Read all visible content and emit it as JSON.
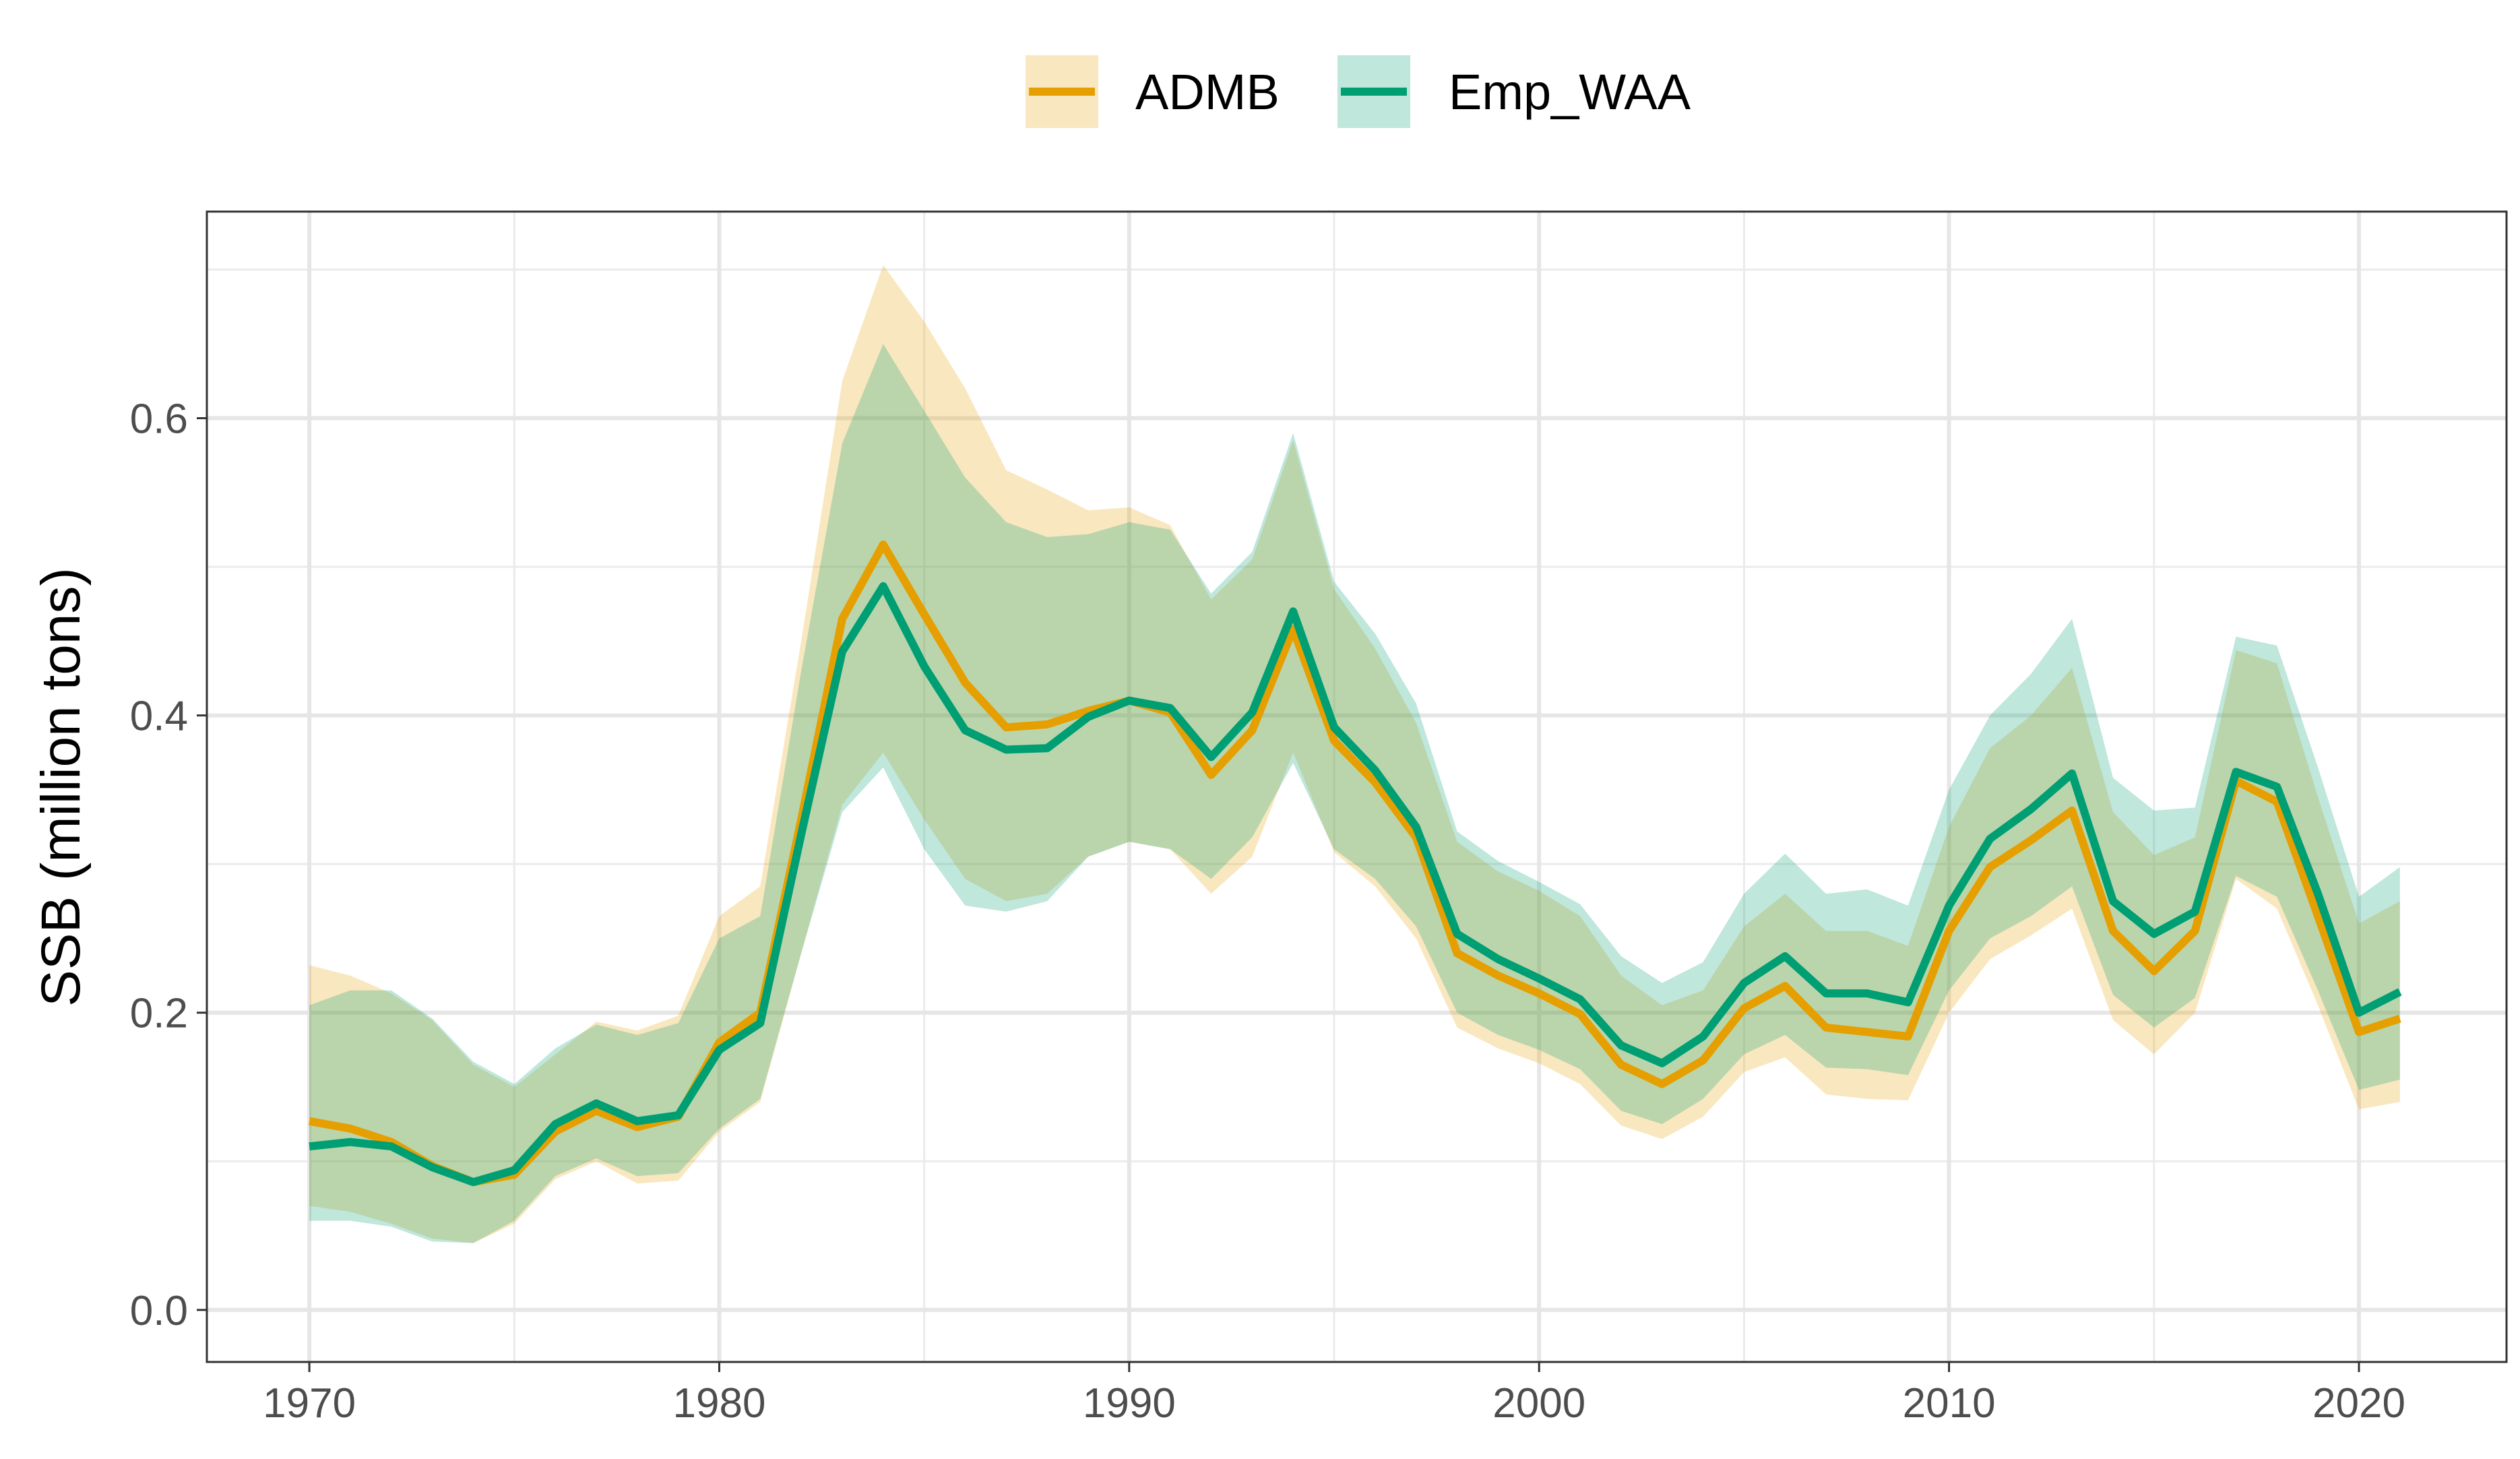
{
  "chart_data": {
    "type": "line",
    "title": "",
    "xlabel": "",
    "ylabel": "SSB (million tons)",
    "xlim": [
      1967.5,
      2023.6
    ],
    "ylim": [
      -0.035,
      0.739
    ],
    "x_ticks": [
      1970,
      1980,
      1990,
      2000,
      2010,
      2020
    ],
    "x_tick_labels": [
      "1970",
      "1980",
      "1990",
      "2000",
      "2010",
      "2020"
    ],
    "y_ticks": [
      0.0,
      0.2,
      0.4,
      0.6
    ],
    "y_tick_labels": [
      "0.0",
      "0.2",
      "0.4",
      "0.6"
    ],
    "grid": true,
    "legend_position": "top",
    "x": [
      1970,
      1971,
      1972,
      1973,
      1974,
      1975,
      1976,
      1977,
      1978,
      1979,
      1980,
      1981,
      1982,
      1983,
      1984,
      1985,
      1986,
      1987,
      1988,
      1989,
      1990,
      1991,
      1992,
      1993,
      1994,
      1995,
      1996,
      1997,
      1998,
      1999,
      2000,
      2001,
      2002,
      2003,
      2004,
      2005,
      2006,
      2007,
      2008,
      2009,
      2010,
      2011,
      2012,
      2013,
      2014,
      2015,
      2016,
      2017,
      2018,
      2019,
      2020,
      2021
    ],
    "series": [
      {
        "name": "ADMB",
        "color": "#E69F00",
        "values": [
          0.127,
          0.122,
          0.113,
          0.097,
          0.086,
          0.091,
          0.12,
          0.134,
          0.123,
          0.13,
          0.18,
          0.2,
          0.33,
          0.465,
          0.515,
          0.468,
          0.422,
          0.392,
          0.394,
          0.403,
          0.41,
          0.402,
          0.36,
          0.39,
          0.458,
          0.383,
          0.355,
          0.318,
          0.24,
          0.225,
          0.213,
          0.199,
          0.165,
          0.152,
          0.168,
          0.203,
          0.218,
          0.19,
          0.187,
          0.184,
          0.255,
          0.298,
          0.316,
          0.336,
          0.255,
          0.228,
          0.255,
          0.356,
          0.342,
          0.265,
          0.187,
          0.196
        ],
        "upper": [
          0.232,
          0.225,
          0.213,
          0.195,
          0.165,
          0.15,
          0.172,
          0.194,
          0.188,
          0.198,
          0.265,
          0.285,
          0.45,
          0.625,
          0.703,
          0.665,
          0.62,
          0.565,
          0.552,
          0.538,
          0.54,
          0.528,
          0.478,
          0.505,
          0.585,
          0.485,
          0.445,
          0.395,
          0.315,
          0.295,
          0.282,
          0.265,
          0.225,
          0.205,
          0.215,
          0.258,
          0.28,
          0.255,
          0.255,
          0.245,
          0.325,
          0.378,
          0.4,
          0.432,
          0.335,
          0.306,
          0.318,
          0.444,
          0.435,
          0.345,
          0.26,
          0.275
        ],
        "lower": [
          0.07,
          0.066,
          0.058,
          0.048,
          0.045,
          0.058,
          0.088,
          0.1,
          0.085,
          0.087,
          0.12,
          0.14,
          0.24,
          0.34,
          0.375,
          0.33,
          0.29,
          0.275,
          0.28,
          0.305,
          0.315,
          0.31,
          0.28,
          0.305,
          0.375,
          0.308,
          0.285,
          0.25,
          0.19,
          0.176,
          0.166,
          0.152,
          0.124,
          0.115,
          0.13,
          0.16,
          0.17,
          0.145,
          0.142,
          0.141,
          0.2,
          0.236,
          0.252,
          0.27,
          0.195,
          0.172,
          0.2,
          0.29,
          0.27,
          0.205,
          0.135,
          0.14
        ]
      },
      {
        "name": "Emp_WAA",
        "color": "#009E73",
        "values": [
          0.11,
          0.113,
          0.11,
          0.096,
          0.086,
          0.094,
          0.125,
          0.139,
          0.127,
          0.131,
          0.175,
          0.193,
          0.32,
          0.443,
          0.487,
          0.433,
          0.39,
          0.377,
          0.378,
          0.399,
          0.41,
          0.405,
          0.372,
          0.402,
          0.47,
          0.392,
          0.363,
          0.325,
          0.253,
          0.236,
          0.223,
          0.209,
          0.178,
          0.166,
          0.184,
          0.22,
          0.238,
          0.213,
          0.213,
          0.207,
          0.272,
          0.317,
          0.337,
          0.361,
          0.275,
          0.253,
          0.268,
          0.362,
          0.352,
          0.28,
          0.2,
          0.214
        ],
        "upper": [
          0.205,
          0.215,
          0.215,
          0.196,
          0.167,
          0.152,
          0.176,
          0.192,
          0.185,
          0.193,
          0.25,
          0.265,
          0.43,
          0.583,
          0.65,
          0.605,
          0.56,
          0.53,
          0.52,
          0.522,
          0.53,
          0.525,
          0.482,
          0.51,
          0.59,
          0.49,
          0.455,
          0.408,
          0.322,
          0.302,
          0.288,
          0.273,
          0.238,
          0.22,
          0.234,
          0.28,
          0.307,
          0.28,
          0.283,
          0.272,
          0.35,
          0.4,
          0.428,
          0.465,
          0.358,
          0.336,
          0.338,
          0.453,
          0.447,
          0.365,
          0.278,
          0.298
        ],
        "lower": [
          0.06,
          0.06,
          0.056,
          0.046,
          0.045,
          0.06,
          0.09,
          0.102,
          0.09,
          0.092,
          0.122,
          0.142,
          0.24,
          0.335,
          0.365,
          0.31,
          0.272,
          0.268,
          0.275,
          0.305,
          0.315,
          0.31,
          0.29,
          0.318,
          0.368,
          0.31,
          0.29,
          0.258,
          0.2,
          0.185,
          0.175,
          0.162,
          0.134,
          0.125,
          0.142,
          0.172,
          0.185,
          0.163,
          0.162,
          0.158,
          0.215,
          0.25,
          0.265,
          0.285,
          0.212,
          0.19,
          0.21,
          0.292,
          0.278,
          0.215,
          0.148,
          0.155
        ]
      }
    ]
  }
}
